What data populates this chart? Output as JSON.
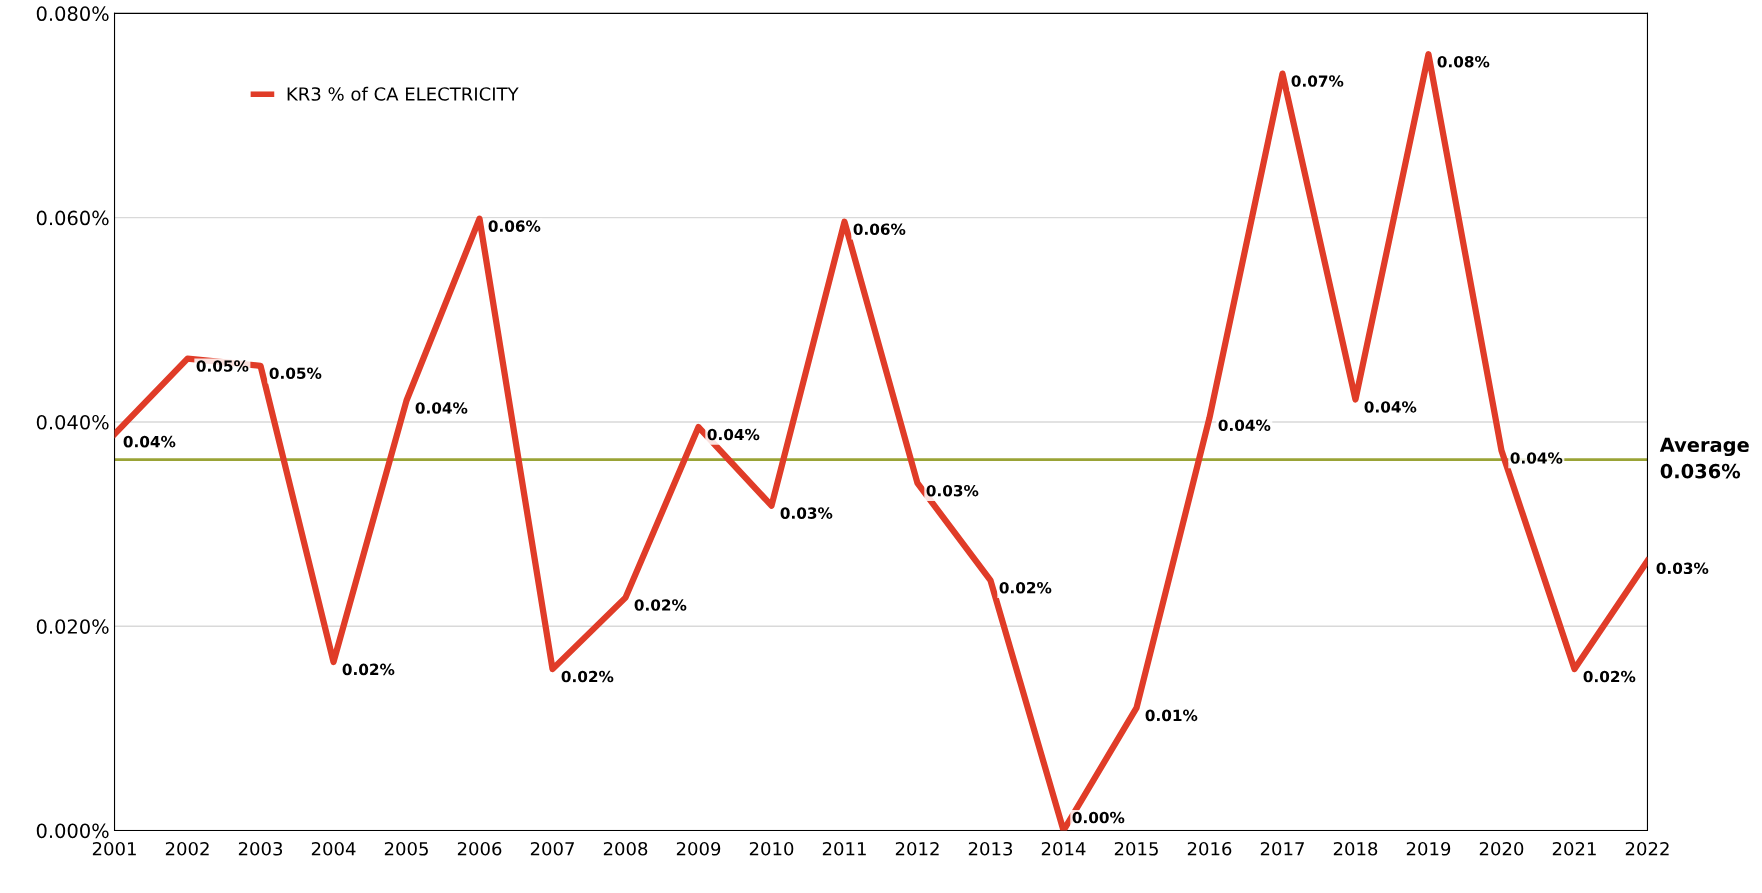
{
  "chart_data": {
    "type": "line",
    "categories": [
      "2001",
      "2002",
      "2003",
      "2004",
      "2005",
      "2006",
      "2007",
      "2008",
      "2009",
      "2010",
      "2011",
      "2012",
      "2013",
      "2014",
      "2015",
      "2016",
      "2017",
      "2018",
      "2019",
      "2020",
      "2021",
      "2022"
    ],
    "series": [
      {
        "name": "KR3 % of CA ELECTRICITY",
        "color": "#e03c28",
        "values": [
          0.0388,
          0.0462,
          0.0455,
          0.0165,
          0.0421,
          0.0599,
          0.0158,
          0.0228,
          0.0395,
          0.0318,
          0.0596,
          0.034,
          0.0245,
          0.0,
          0.012,
          0.0404,
          0.0741,
          0.0422,
          0.076,
          0.0372,
          0.0158,
          0.0264
        ],
        "value_labels": [
          "0.04%",
          "0.05%",
          "0.05%",
          "0.02%",
          "0.04%",
          "0.06%",
          "0.02%",
          "0.02%",
          "0.04%",
          "0.03%",
          "0.06%",
          "0.03%",
          "0.02%",
          "0.00%",
          "0.01%",
          "0.04%",
          "0.07%",
          "0.04%",
          "0.08%",
          "0.04%",
          "0.02%",
          "0.03%"
        ]
      }
    ],
    "ylim": [
      0,
      0.08
    ],
    "yticks": [
      {
        "value": 0,
        "label": "0.000%"
      },
      {
        "value": 0.02,
        "label": "0.020%"
      },
      {
        "value": 0.04,
        "label": "0.040%"
      },
      {
        "value": 0.06,
        "label": "0.060%"
      },
      {
        "value": 0.08,
        "label": "0.080%"
      }
    ],
    "ref_lines": [
      {
        "axis": "y",
        "value": 0.0363,
        "label": "Average\n0.036%",
        "color": "#9aa336"
      }
    ],
    "grid": "y",
    "legend": "top left",
    "marker": "none",
    "line_style": "solid"
  }
}
